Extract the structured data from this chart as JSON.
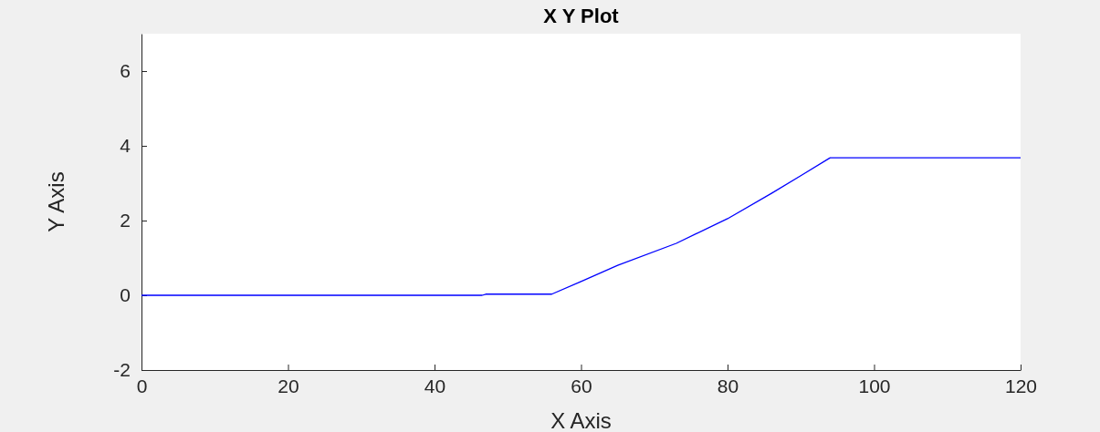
{
  "chart_data": {
    "type": "line",
    "title": "X Y Plot",
    "xlabel": "X Axis",
    "ylabel": "Y Axis",
    "series": [
      {
        "color": "#0000ff",
        "x": [
          0,
          46.5,
          47,
          56,
          60,
          65,
          73,
          80,
          86,
          90,
          94,
          120
        ],
        "values": [
          0,
          0,
          0.03,
          0.03,
          0.37,
          0.8,
          1.39,
          2.05,
          2.73,
          3.2,
          3.68,
          3.68
        ]
      }
    ],
    "xlim": [
      0,
      120
    ],
    "xticks": [
      0,
      20,
      40,
      60,
      80,
      100,
      120
    ],
    "ylim": [
      -2,
      7
    ],
    "yticks": [
      -2,
      0,
      2,
      4,
      6
    ],
    "grid": false
  }
}
